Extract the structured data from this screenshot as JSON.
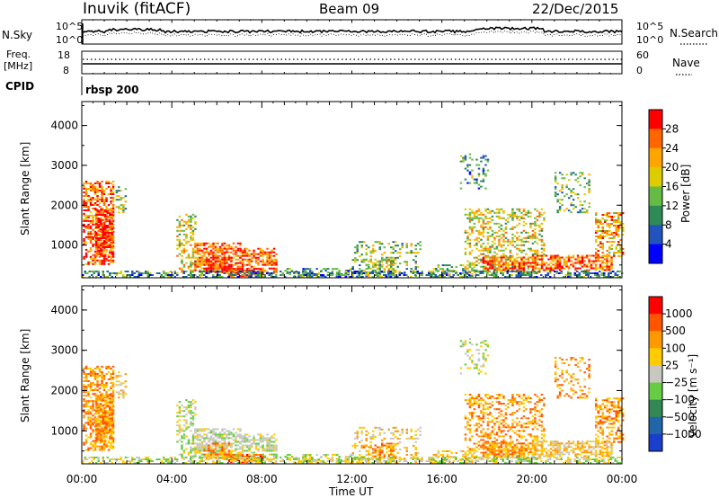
{
  "header": {
    "station": "Inuvik (fitACF)",
    "beam": "Beam 09",
    "date": "22/Dec/2015"
  },
  "panels": {
    "noise": {
      "left_label": "N.Sky",
      "right_label": "N.Search",
      "tick_top": "10^5",
      "tick_bottom": "10^0",
      "right_tick_top": "10^5",
      "right_tick_bottom": "10^0"
    },
    "freq": {
      "left_label_line1": "Freq.",
      "left_label_line2": "[MHz]",
      "right_label": "Nave",
      "tick_top": "18",
      "tick_bottom": "8",
      "right_tick_top": "60",
      "right_tick_bottom": "0"
    },
    "cpid": {
      "label": "CPID",
      "value": "rbsp 200"
    }
  },
  "chart_data": [
    {
      "type": "heatmap",
      "name": "power",
      "ylabel": "Slant Range [km]",
      "ylim": [
        180,
        4600
      ],
      "yticks": [
        "1000",
        "2000",
        "3000",
        "4000"
      ],
      "xlim_hours": [
        0,
        24
      ],
      "colorbar": {
        "label": "Power [dB]",
        "ticks": [
          "4",
          "8",
          "12",
          "16",
          "20",
          "24",
          "28"
        ],
        "colors": [
          "#0000ff",
          "#2255bb",
          "#2e8b57",
          "#66bb44",
          "#ddcc00",
          "#ffa500",
          "#ff6600",
          "#ff0000"
        ]
      }
    },
    {
      "type": "heatmap",
      "name": "velocity",
      "ylabel": "Slant Range [km]",
      "ylim": [
        180,
        4600
      ],
      "yticks": [
        "1000",
        "2000",
        "3000",
        "4000"
      ],
      "xlim_hours": [
        0,
        24
      ],
      "xticks": [
        "00:00",
        "04:00",
        "08:00",
        "12:00",
        "16:00",
        "20:00",
        "00:00"
      ],
      "xlabel": "Time UT",
      "colorbar": {
        "label": "Velocity [m s⁻¹]",
        "ticks": [
          "1000",
          "500",
          "100",
          "25",
          "−25",
          "−100",
          "−500",
          "−1000"
        ],
        "colors": [
          "#1a3fcc",
          "#2266aa",
          "#338855",
          "#66cc44",
          "#c8c8c0",
          "#ffcc00",
          "#ff9900",
          "#ff5500",
          "#ff0000"
        ]
      }
    }
  ]
}
